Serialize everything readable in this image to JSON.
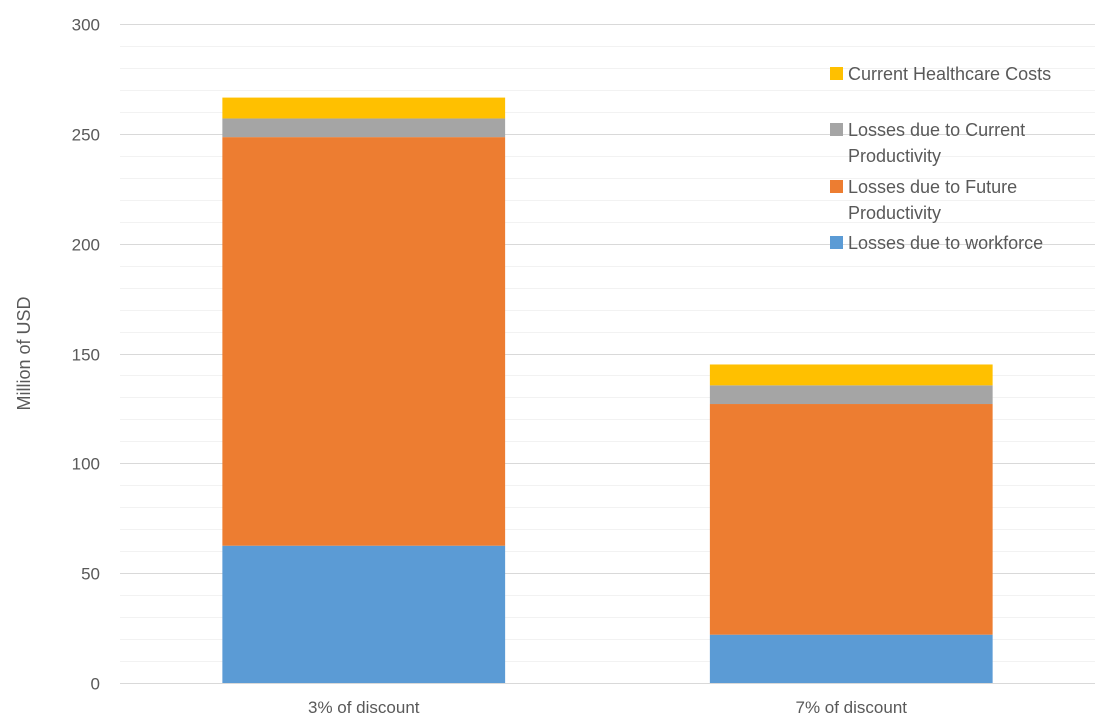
{
  "chart_data": {
    "type": "bar",
    "stacked": true,
    "title": "",
    "xlabel": "",
    "ylabel": "Million of USD",
    "ylim": [
      0,
      300
    ],
    "yticks": [
      0,
      50,
      100,
      150,
      200,
      250,
      300
    ],
    "minor_grid_step": 10,
    "grid": true,
    "legend_position": "top-right",
    "categories": [
      "3% of discount",
      "7% of discount"
    ],
    "series": [
      {
        "name": "Losses due to workforce",
        "color": "#5B9BD5",
        "values": [
          62.5,
          22
        ]
      },
      {
        "name": "Losses due to Future Productivity",
        "color": "#ED7D31",
        "values": [
          186,
          105
        ]
      },
      {
        "name": "Losses due to Current Productivity",
        "color": "#A5A5A5",
        "values": [
          8.5,
          8.5
        ]
      },
      {
        "name": "Current Healthcare Costs",
        "color": "#FFC000",
        "values": [
          9.5,
          9.5
        ]
      }
    ],
    "legend": [
      {
        "series": 3,
        "lines": [
          "Current Healthcare Costs"
        ]
      },
      {
        "series": 2,
        "lines": [
          "Losses due to Current",
          "Productivity"
        ]
      },
      {
        "series": 1,
        "lines": [
          "Losses due to Future",
          "Productivity"
        ]
      },
      {
        "series": 0,
        "lines": [
          "Losses due to workforce"
        ]
      }
    ]
  }
}
